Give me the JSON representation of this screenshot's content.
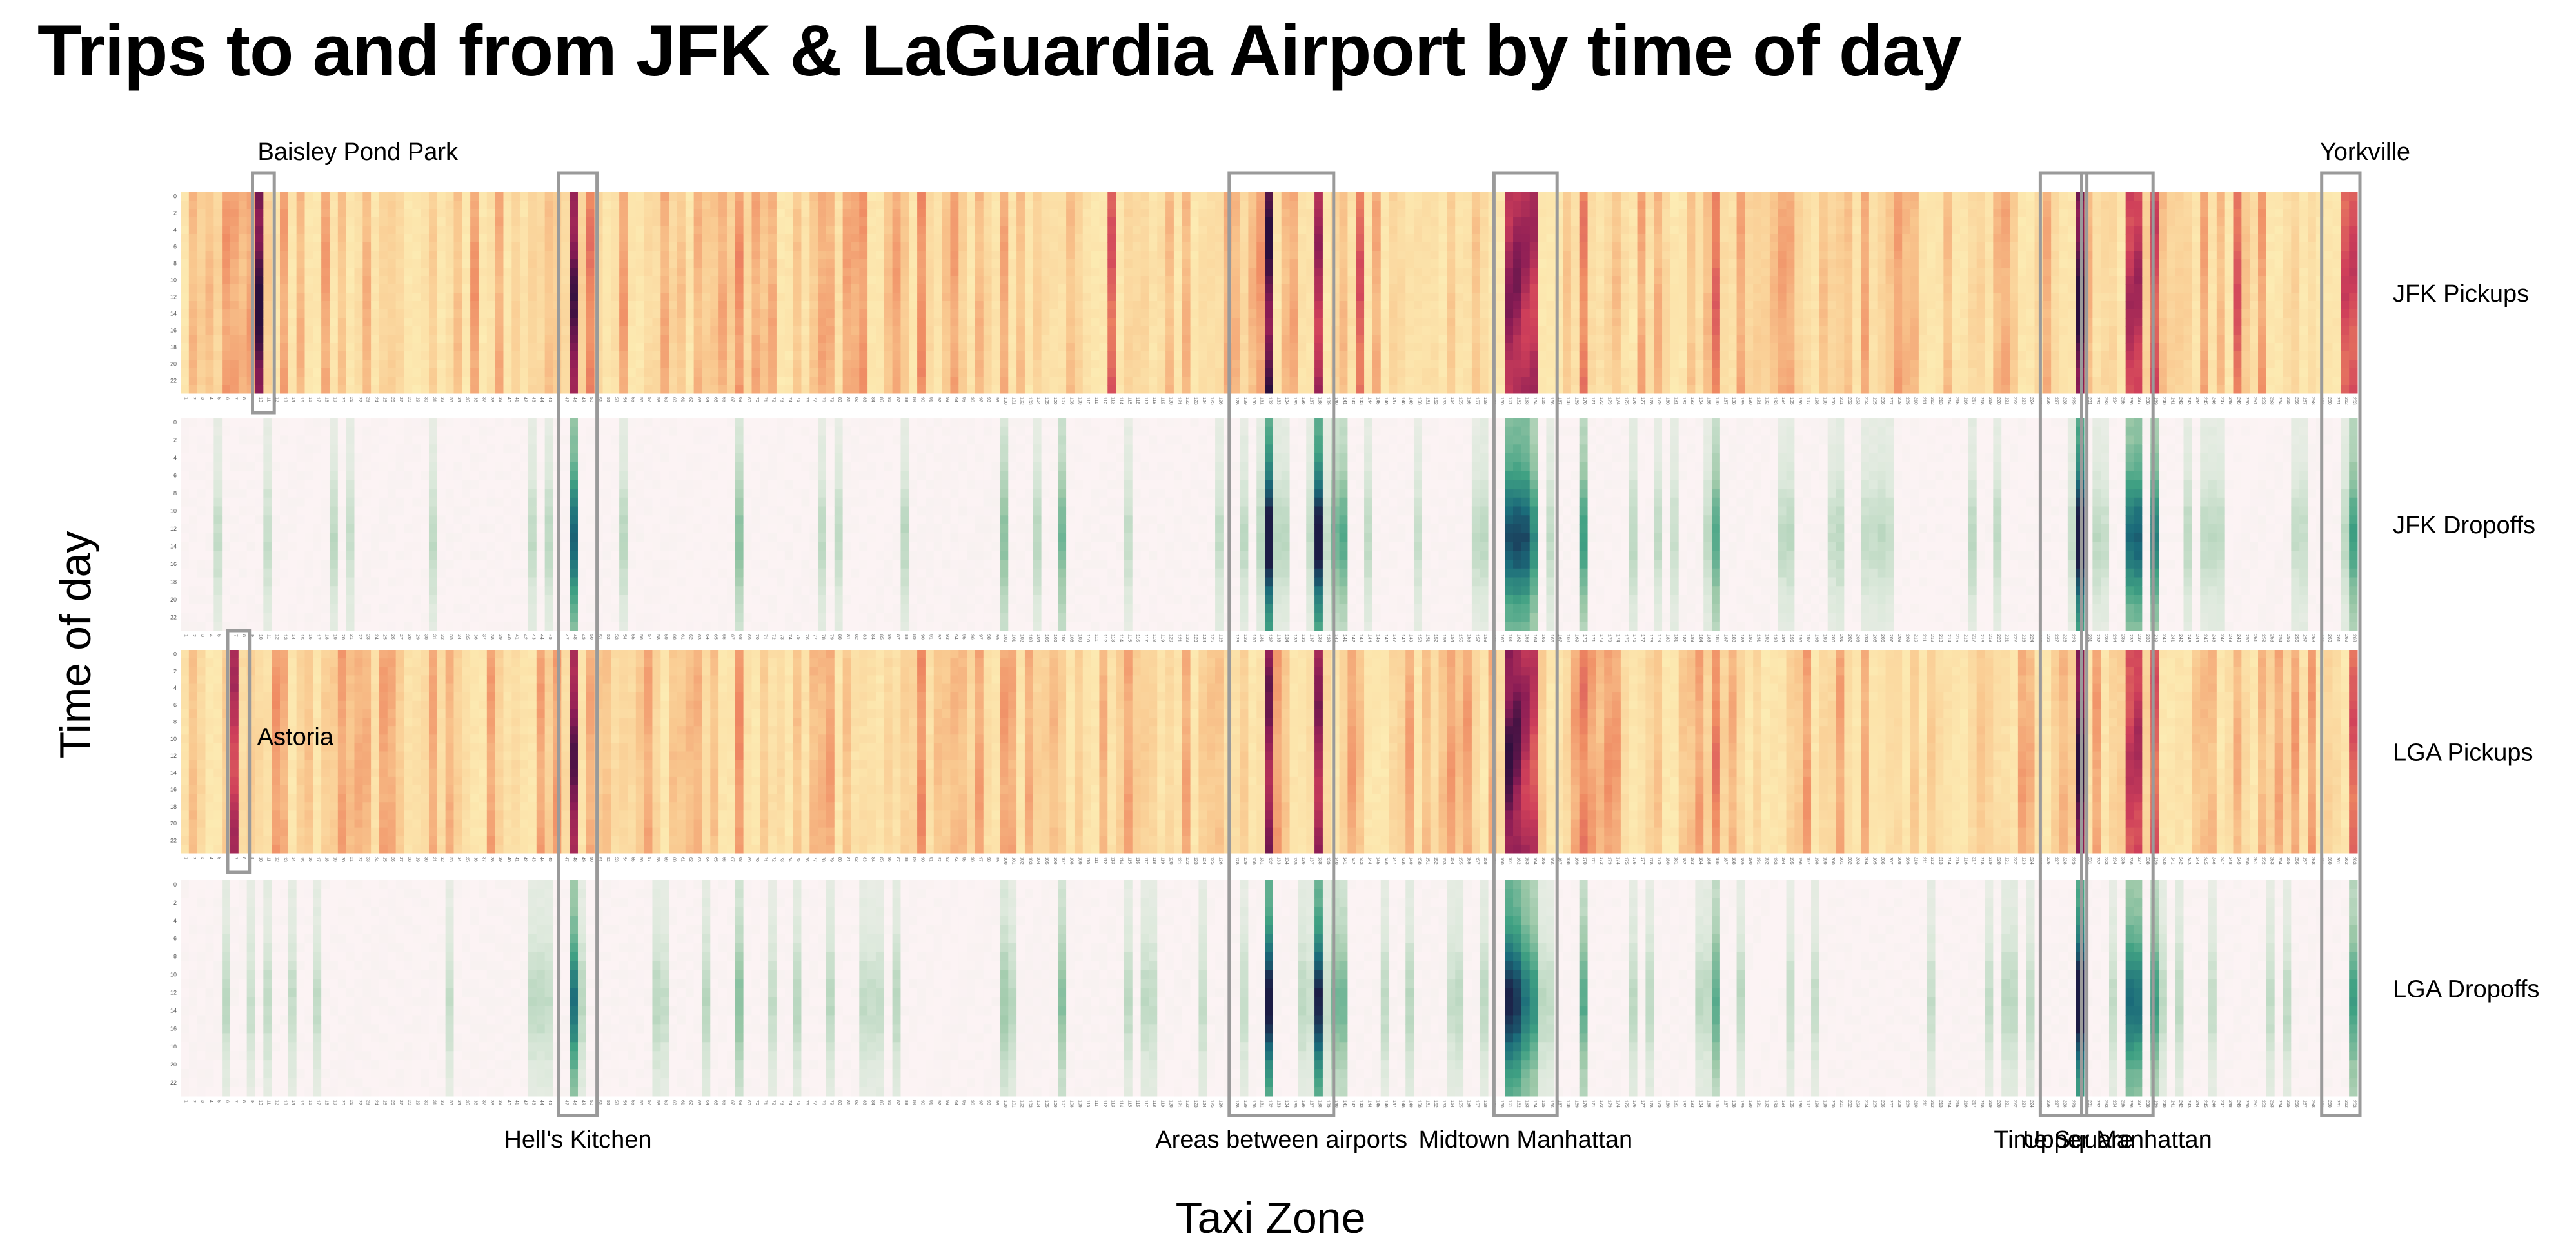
{
  "title": "Trips to and from JFK & LaGuardia Airport by time of day",
  "chart_data": {
    "type": "heatmap",
    "title": "Trips to and from JFK & LaGuardia Airport by time of day",
    "xlabel": "Taxi Zone",
    "ylabel": "Time of day",
    "x_range": [
      1,
      263
    ],
    "y_tick_labels": [
      "0",
      "2",
      "4",
      "6",
      "8",
      "10",
      "12",
      "14",
      "16",
      "18",
      "20",
      "22"
    ],
    "hours": 24,
    "colorscales": {
      "pickups": [
        "#fdf0b8",
        "#f9c88f",
        "#ef8a62",
        "#cf3f5a",
        "#8a1c55",
        "#2a0f3d"
      ],
      "dropoffs": [
        "#fcf3f4",
        "#dde9dc",
        "#9cc8a8",
        "#40a183",
        "#1b6b7a",
        "#1c1c45"
      ]
    },
    "panels": [
      {
        "name": "JFK Pickups",
        "scale": "pickups",
        "hot_zones": [
          {
            "zone": 10,
            "intensity": 1.0
          },
          {
            "zone": 48,
            "intensity": 0.92
          },
          {
            "zone": 50,
            "intensity": 0.45
          },
          {
            "zone": 68,
            "intensity": 0.4
          },
          {
            "zone": 90,
            "intensity": 0.4
          },
          {
            "zone": 113,
            "intensity": 0.55
          },
          {
            "zone": 132,
            "intensity": 0.98
          },
          {
            "zone": 138,
            "intensity": 0.75
          },
          {
            "zone": 143,
            "intensity": 0.55
          },
          {
            "zone": 161,
            "intensity": 0.8
          },
          {
            "zone": 162,
            "intensity": 0.82
          },
          {
            "zone": 163,
            "intensity": 0.75
          },
          {
            "zone": 164,
            "intensity": 0.72
          },
          {
            "zone": 170,
            "intensity": 0.45
          },
          {
            "zone": 186,
            "intensity": 0.5
          },
          {
            "zone": 230,
            "intensity": 0.99
          },
          {
            "zone": 236,
            "intensity": 0.7
          },
          {
            "zone": 237,
            "intensity": 0.72
          },
          {
            "zone": 239,
            "intensity": 0.6
          },
          {
            "zone": 249,
            "intensity": 0.55
          },
          {
            "zone": 262,
            "intensity": 0.6
          },
          {
            "zone": 263,
            "intensity": 0.62
          }
        ]
      },
      {
        "name": "JFK Dropoffs",
        "scale": "dropoffs",
        "hot_zones": [
          {
            "zone": 48,
            "intensity": 0.75
          },
          {
            "zone": 68,
            "intensity": 0.4
          },
          {
            "zone": 100,
            "intensity": 0.4
          },
          {
            "zone": 107,
            "intensity": 0.45
          },
          {
            "zone": 132,
            "intensity": 0.98
          },
          {
            "zone": 138,
            "intensity": 0.95
          },
          {
            "zone": 140,
            "intensity": 0.45
          },
          {
            "zone": 141,
            "intensity": 0.5
          },
          {
            "zone": 161,
            "intensity": 0.8
          },
          {
            "zone": 162,
            "intensity": 0.82
          },
          {
            "zone": 163,
            "intensity": 0.8
          },
          {
            "zone": 164,
            "intensity": 0.62
          },
          {
            "zone": 170,
            "intensity": 0.55
          },
          {
            "zone": 186,
            "intensity": 0.5
          },
          {
            "zone": 230,
            "intensity": 0.99
          },
          {
            "zone": 236,
            "intensity": 0.72
          },
          {
            "zone": 237,
            "intensity": 0.75
          },
          {
            "zone": 239,
            "intensity": 0.65
          },
          {
            "zone": 263,
            "intensity": 0.55
          }
        ]
      },
      {
        "name": "LGA Pickups",
        "scale": "pickups",
        "hot_zones": [
          {
            "zone": 7,
            "intensity": 0.7
          },
          {
            "zone": 48,
            "intensity": 0.88
          },
          {
            "zone": 68,
            "intensity": 0.4
          },
          {
            "zone": 90,
            "intensity": 0.4
          },
          {
            "zone": 132,
            "intensity": 0.85
          },
          {
            "zone": 138,
            "intensity": 0.8
          },
          {
            "zone": 161,
            "intensity": 0.95
          },
          {
            "zone": 162,
            "intensity": 0.9
          },
          {
            "zone": 163,
            "intensity": 0.75
          },
          {
            "zone": 164,
            "intensity": 0.65
          },
          {
            "zone": 170,
            "intensity": 0.45
          },
          {
            "zone": 186,
            "intensity": 0.45
          },
          {
            "zone": 230,
            "intensity": 0.99
          },
          {
            "zone": 236,
            "intensity": 0.65
          },
          {
            "zone": 237,
            "intensity": 0.7
          },
          {
            "zone": 239,
            "intensity": 0.55
          },
          {
            "zone": 263,
            "intensity": 0.55
          }
        ]
      },
      {
        "name": "LGA Dropoffs",
        "scale": "dropoffs",
        "hot_zones": [
          {
            "zone": 48,
            "intensity": 0.7
          },
          {
            "zone": 68,
            "intensity": 0.4
          },
          {
            "zone": 100,
            "intensity": 0.35
          },
          {
            "zone": 107,
            "intensity": 0.4
          },
          {
            "zone": 132,
            "intensity": 0.92
          },
          {
            "zone": 138,
            "intensity": 0.9
          },
          {
            "zone": 140,
            "intensity": 0.45
          },
          {
            "zone": 141,
            "intensity": 0.45
          },
          {
            "zone": 161,
            "intensity": 0.9
          },
          {
            "zone": 162,
            "intensity": 0.85
          },
          {
            "zone": 163,
            "intensity": 0.7
          },
          {
            "zone": 164,
            "intensity": 0.6
          },
          {
            "zone": 170,
            "intensity": 0.5
          },
          {
            "zone": 186,
            "intensity": 0.5
          },
          {
            "zone": 230,
            "intensity": 0.99
          },
          {
            "zone": 236,
            "intensity": 0.72
          },
          {
            "zone": 237,
            "intensity": 0.7
          },
          {
            "zone": 239,
            "intensity": 0.55
          },
          {
            "zone": 263,
            "intensity": 0.55
          }
        ]
      }
    ],
    "annotations": [
      {
        "label": "Baisley Pond Park",
        "zones": [
          10,
          11
        ],
        "panels": [
          0,
          0
        ],
        "label_side": "top"
      },
      {
        "label": "Hell's Kitchen",
        "zones": [
          47,
          50
        ],
        "panels": [
          0,
          3
        ],
        "label_side": "bottom"
      },
      {
        "label": "Areas between airports",
        "zones": [
          128,
          139
        ],
        "panels": [
          0,
          3
        ],
        "label_side": "bottom"
      },
      {
        "label": "Midtown Manhattan",
        "zones": [
          160,
          166
        ],
        "panels": [
          0,
          3
        ],
        "label_side": "bottom"
      },
      {
        "label": "Time Square",
        "zones": [
          226,
          230
        ],
        "panels": [
          0,
          3
        ],
        "label_side": "bottom"
      },
      {
        "label": "Upper Manhattan",
        "zones": [
          231,
          238
        ],
        "panels": [
          0,
          3
        ],
        "label_side": "bottom"
      },
      {
        "label": "Yorkville",
        "zones": [
          260,
          263
        ],
        "panels": [
          0,
          3
        ],
        "label_side": "top"
      },
      {
        "label": "Astoria",
        "zones": [
          7,
          8
        ],
        "panels": [
          2,
          2
        ],
        "label_side": "right"
      }
    ]
  }
}
